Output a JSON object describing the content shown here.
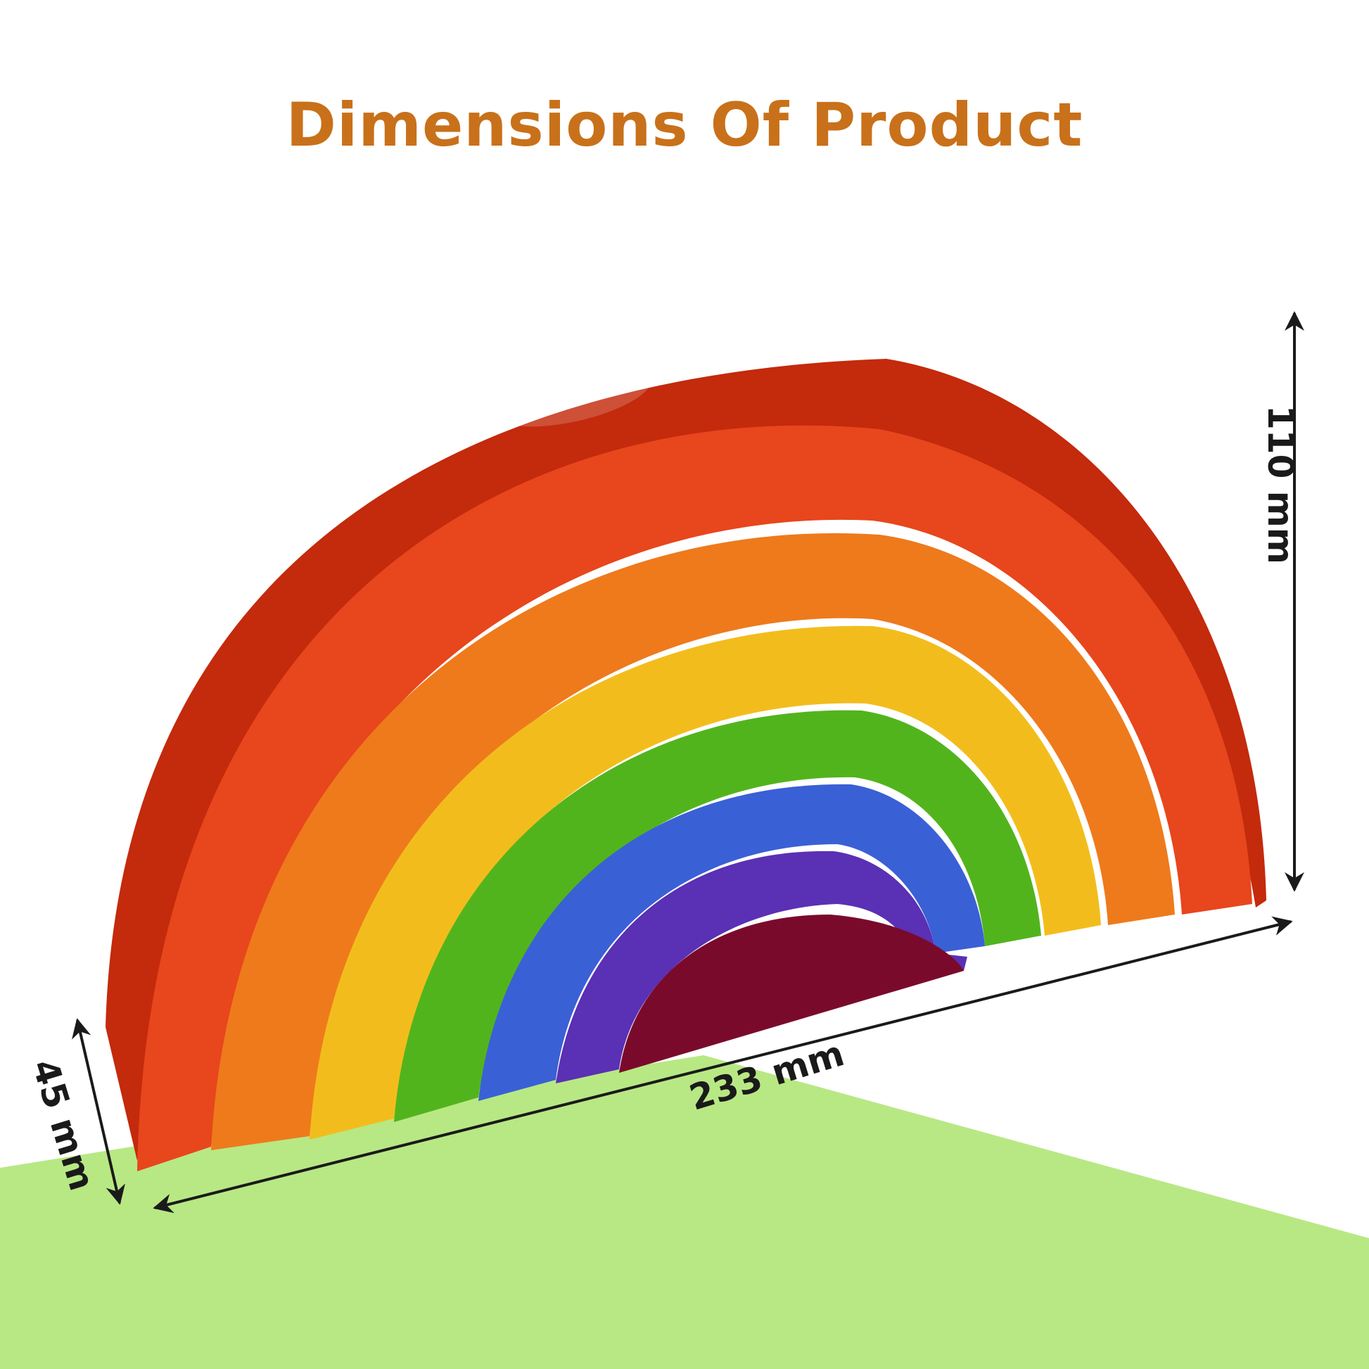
{
  "title": "Dimensions Of Product",
  "dimensions": {
    "height": "110 mm",
    "width": "233 mm",
    "depth": "45 mm"
  },
  "colors": {
    "title": "#c8711a",
    "floor": "#b8e884",
    "arrow": "#1a1a1a",
    "arches": [
      "#e8461c",
      "#ee7a1c",
      "#f2bd1c",
      "#52b41c",
      "#3a60d6",
      "#5a30b4",
      "#7a0a2c"
    ]
  }
}
